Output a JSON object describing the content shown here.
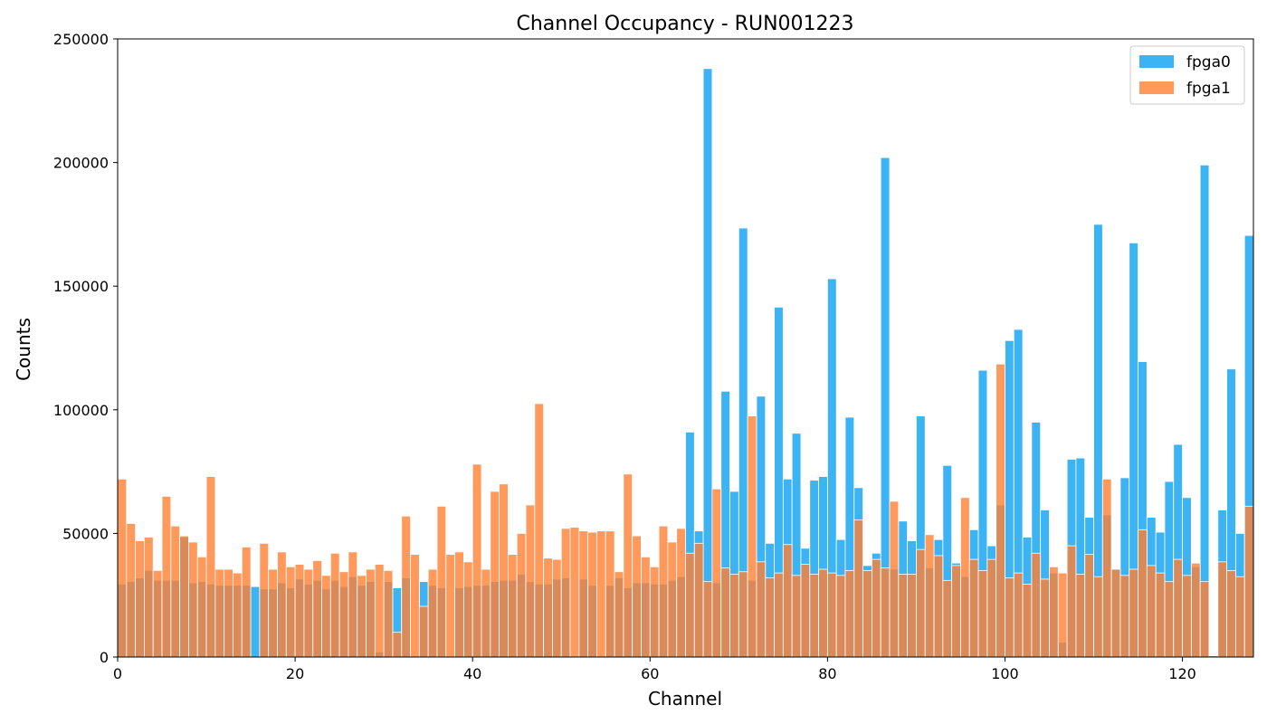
{
  "chart_data": {
    "type": "bar",
    "title": "Channel Occupancy - RUN001223",
    "xlabel": "Channel",
    "ylabel": "Counts",
    "xlim": [
      0,
      128
    ],
    "ylim": [
      0,
      250000
    ],
    "x_ticks": [
      0,
      20,
      40,
      60,
      80,
      100,
      120
    ],
    "y_ticks": [
      0,
      50000,
      100000,
      150000,
      200000,
      250000
    ],
    "legend_position": "top-right",
    "grid": false,
    "series": [
      {
        "name": "fpga0",
        "color": "#1aa7f2",
        "values": [
          29500,
          30500,
          32000,
          35000,
          31000,
          31000,
          31000,
          48500,
          30000,
          30500,
          29500,
          29000,
          29000,
          29000,
          29000,
          28500,
          27500,
          27500,
          30000,
          28000,
          31500,
          29500,
          31000,
          27500,
          31000,
          28500,
          32500,
          29000,
          30500,
          2000,
          30500,
          28000,
          32000,
          0,
          30500,
          29000,
          28000,
          0,
          28000,
          28500,
          29000,
          29000,
          30500,
          31000,
          31000,
          33500,
          30500,
          29500,
          29500,
          31500,
          32000,
          0,
          31500,
          29000,
          0,
          29000,
          32000,
          28000,
          30000,
          30000,
          29500,
          29500,
          31000,
          32500,
          91000,
          51000,
          238000,
          30000,
          107500,
          67000,
          173500,
          31000,
          105500,
          46000,
          141500,
          72000,
          90500,
          44000,
          71500,
          73000,
          153000,
          47500,
          97000,
          68500,
          37000,
          42000,
          202000,
          35500,
          55000,
          47000,
          97500,
          36000,
          47500,
          77500,
          38000,
          32500,
          51500,
          116000,
          45000,
          61500,
          128000,
          132500,
          48500,
          95000,
          59500,
          34000,
          6000,
          80000,
          80500,
          56500,
          175000,
          57500,
          35500,
          72500,
          167500,
          119500,
          56500,
          50500,
          71000,
          86000,
          64500,
          36500,
          199000,
          500,
          59500,
          116500,
          50000,
          170500
        ]
      },
      {
        "name": "fpga1",
        "color": "#ff8033",
        "values": [
          72000,
          54000,
          47000,
          48500,
          35000,
          65000,
          53000,
          49000,
          46500,
          40500,
          73000,
          35500,
          35500,
          34000,
          44500,
          0,
          46000,
          35500,
          42500,
          36500,
          37500,
          35500,
          39000,
          33000,
          42000,
          34500,
          42500,
          33000,
          35500,
          37500,
          35000,
          10000,
          57000,
          41500,
          20500,
          35500,
          61000,
          41500,
          42500,
          38500,
          78000,
          35500,
          67000,
          70000,
          41500,
          50000,
          61500,
          102500,
          40000,
          39500,
          52000,
          52500,
          51000,
          50500,
          51000,
          51000,
          34500,
          74000,
          49000,
          40500,
          36500,
          53000,
          46500,
          52000,
          42000,
          46000,
          30500,
          68000,
          36000,
          33500,
          34500,
          97500,
          38500,
          32000,
          34000,
          45500,
          33000,
          37500,
          33500,
          35500,
          34000,
          33000,
          35000,
          55500,
          35000,
          39500,
          36000,
          63000,
          33500,
          33500,
          43500,
          49500,
          41000,
          31000,
          37000,
          64500,
          39500,
          35000,
          39500,
          118500,
          32000,
          34000,
          29500,
          42000,
          31500,
          36500,
          34000,
          45000,
          33500,
          41500,
          32500,
          72000,
          35500,
          33000,
          35500,
          51500,
          37000,
          34000,
          30500,
          39500,
          33000,
          38000,
          30500,
          500,
          38500,
          35000,
          32500,
          61000
        ]
      }
    ]
  }
}
